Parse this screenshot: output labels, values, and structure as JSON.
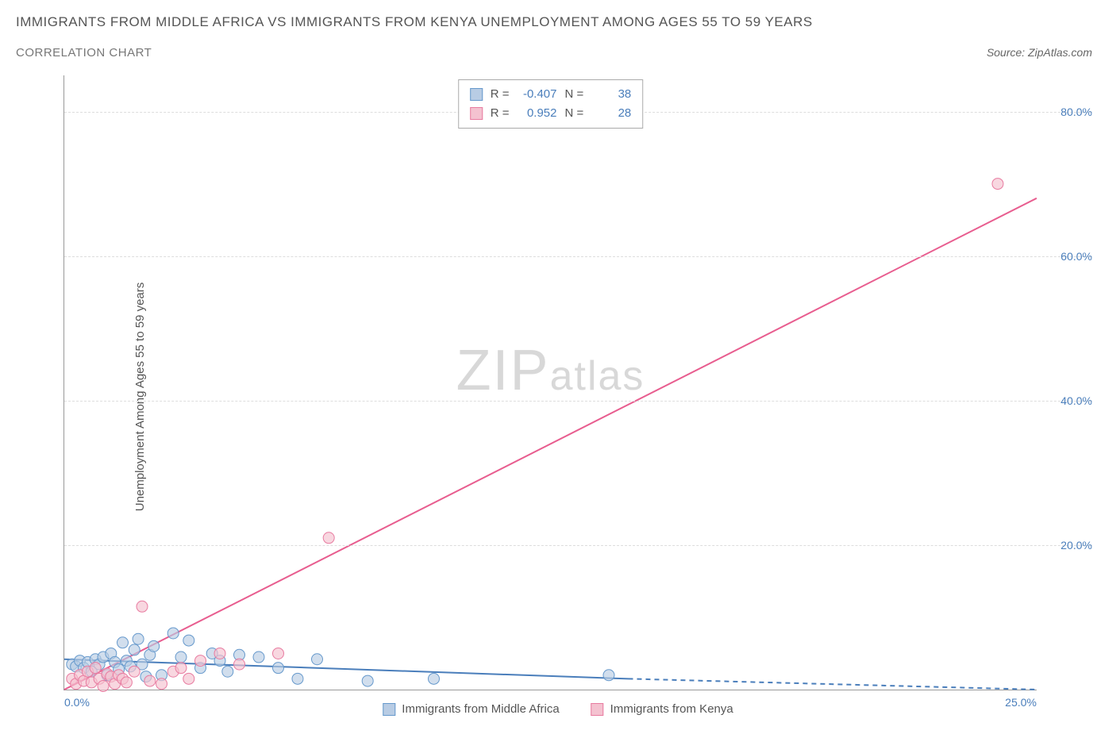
{
  "title": "IMMIGRANTS FROM MIDDLE AFRICA VS IMMIGRANTS FROM KENYA UNEMPLOYMENT AMONG AGES 55 TO 59 YEARS",
  "subtitle": "CORRELATION CHART",
  "source_prefix": "Source: ",
  "source_name": "ZipAtlas.com",
  "y_axis_label": "Unemployment Among Ages 55 to 59 years",
  "watermark_zip": "ZIP",
  "watermark_atlas": "atlas",
  "chart": {
    "type": "scatter",
    "background_color": "#ffffff",
    "grid_color": "#dddddd",
    "axis_color": "#999999",
    "tick_color": "#4a7ebb",
    "xlim": [
      0,
      25
    ],
    "ylim": [
      0,
      85
    ],
    "xticks": [
      {
        "pos": 0,
        "label": "0.0%"
      },
      {
        "pos": 25,
        "label": "25.0%"
      }
    ],
    "yticks": [
      {
        "pos": 20,
        "label": "20.0%"
      },
      {
        "pos": 40,
        "label": "40.0%"
      },
      {
        "pos": 60,
        "label": "60.0%"
      },
      {
        "pos": 80,
        "label": "80.0%"
      }
    ],
    "series": [
      {
        "name": "Immigrants from Middle Africa",
        "color_fill": "#b8cce4",
        "color_stroke": "#6699cc",
        "line_color": "#4a7ebb",
        "marker_radius": 7,
        "marker_opacity": 0.65,
        "R": "-0.407",
        "N": "38",
        "trend": {
          "x1": 0,
          "y1": 4.2,
          "x2": 14.5,
          "y2": 1.5,
          "dash_x2": 25,
          "dash_y2": 0
        },
        "points": [
          [
            0.2,
            3.5
          ],
          [
            0.3,
            3.2
          ],
          [
            0.4,
            4.0
          ],
          [
            0.5,
            3.0
          ],
          [
            0.6,
            3.8
          ],
          [
            0.7,
            2.5
          ],
          [
            0.8,
            4.2
          ],
          [
            0.9,
            3.5
          ],
          [
            1.0,
            4.5
          ],
          [
            1.1,
            2.0
          ],
          [
            1.2,
            5.0
          ],
          [
            1.3,
            3.8
          ],
          [
            1.4,
            2.8
          ],
          [
            1.5,
            6.5
          ],
          [
            1.6,
            4.0
          ],
          [
            1.7,
            3.2
          ],
          [
            1.8,
            5.5
          ],
          [
            1.9,
            7.0
          ],
          [
            2.0,
            3.5
          ],
          [
            2.1,
            1.8
          ],
          [
            2.2,
            4.8
          ],
          [
            2.3,
            6.0
          ],
          [
            2.5,
            2.0
          ],
          [
            2.8,
            7.8
          ],
          [
            3.0,
            4.5
          ],
          [
            3.2,
            6.8
          ],
          [
            3.5,
            3.0
          ],
          [
            3.8,
            5.0
          ],
          [
            4.0,
            4.0
          ],
          [
            4.2,
            2.5
          ],
          [
            4.5,
            4.8
          ],
          [
            5.0,
            4.5
          ],
          [
            5.5,
            3.0
          ],
          [
            6.0,
            1.5
          ],
          [
            6.5,
            4.2
          ],
          [
            7.8,
            1.2
          ],
          [
            9.5,
            1.5
          ],
          [
            14.0,
            2.0
          ]
        ]
      },
      {
        "name": "Immigrants from Kenya",
        "color_fill": "#f4c2d0",
        "color_stroke": "#e87ba0",
        "line_color": "#e85d8f",
        "marker_radius": 7,
        "marker_opacity": 0.65,
        "R": "0.952",
        "N": "28",
        "trend": {
          "x1": 0,
          "y1": 0,
          "x2": 25,
          "y2": 68
        },
        "points": [
          [
            0.2,
            1.5
          ],
          [
            0.3,
            0.8
          ],
          [
            0.4,
            2.0
          ],
          [
            0.5,
            1.2
          ],
          [
            0.6,
            2.5
          ],
          [
            0.7,
            1.0
          ],
          [
            0.8,
            3.0
          ],
          [
            0.9,
            1.5
          ],
          [
            1.0,
            0.5
          ],
          [
            1.1,
            2.2
          ],
          [
            1.2,
            1.8
          ],
          [
            1.3,
            0.8
          ],
          [
            1.4,
            2.0
          ],
          [
            1.5,
            1.5
          ],
          [
            1.6,
            1.0
          ],
          [
            1.8,
            2.5
          ],
          [
            2.0,
            11.5
          ],
          [
            2.2,
            1.2
          ],
          [
            2.5,
            0.8
          ],
          [
            2.8,
            2.5
          ],
          [
            3.0,
            3.0
          ],
          [
            3.2,
            1.5
          ],
          [
            3.5,
            4.0
          ],
          [
            4.0,
            5.0
          ],
          [
            4.5,
            3.5
          ],
          [
            5.5,
            5.0
          ],
          [
            6.8,
            21.0
          ],
          [
            24.0,
            70.0
          ]
        ]
      }
    ]
  },
  "stats_labels": {
    "R": "R =",
    "N": "N ="
  }
}
